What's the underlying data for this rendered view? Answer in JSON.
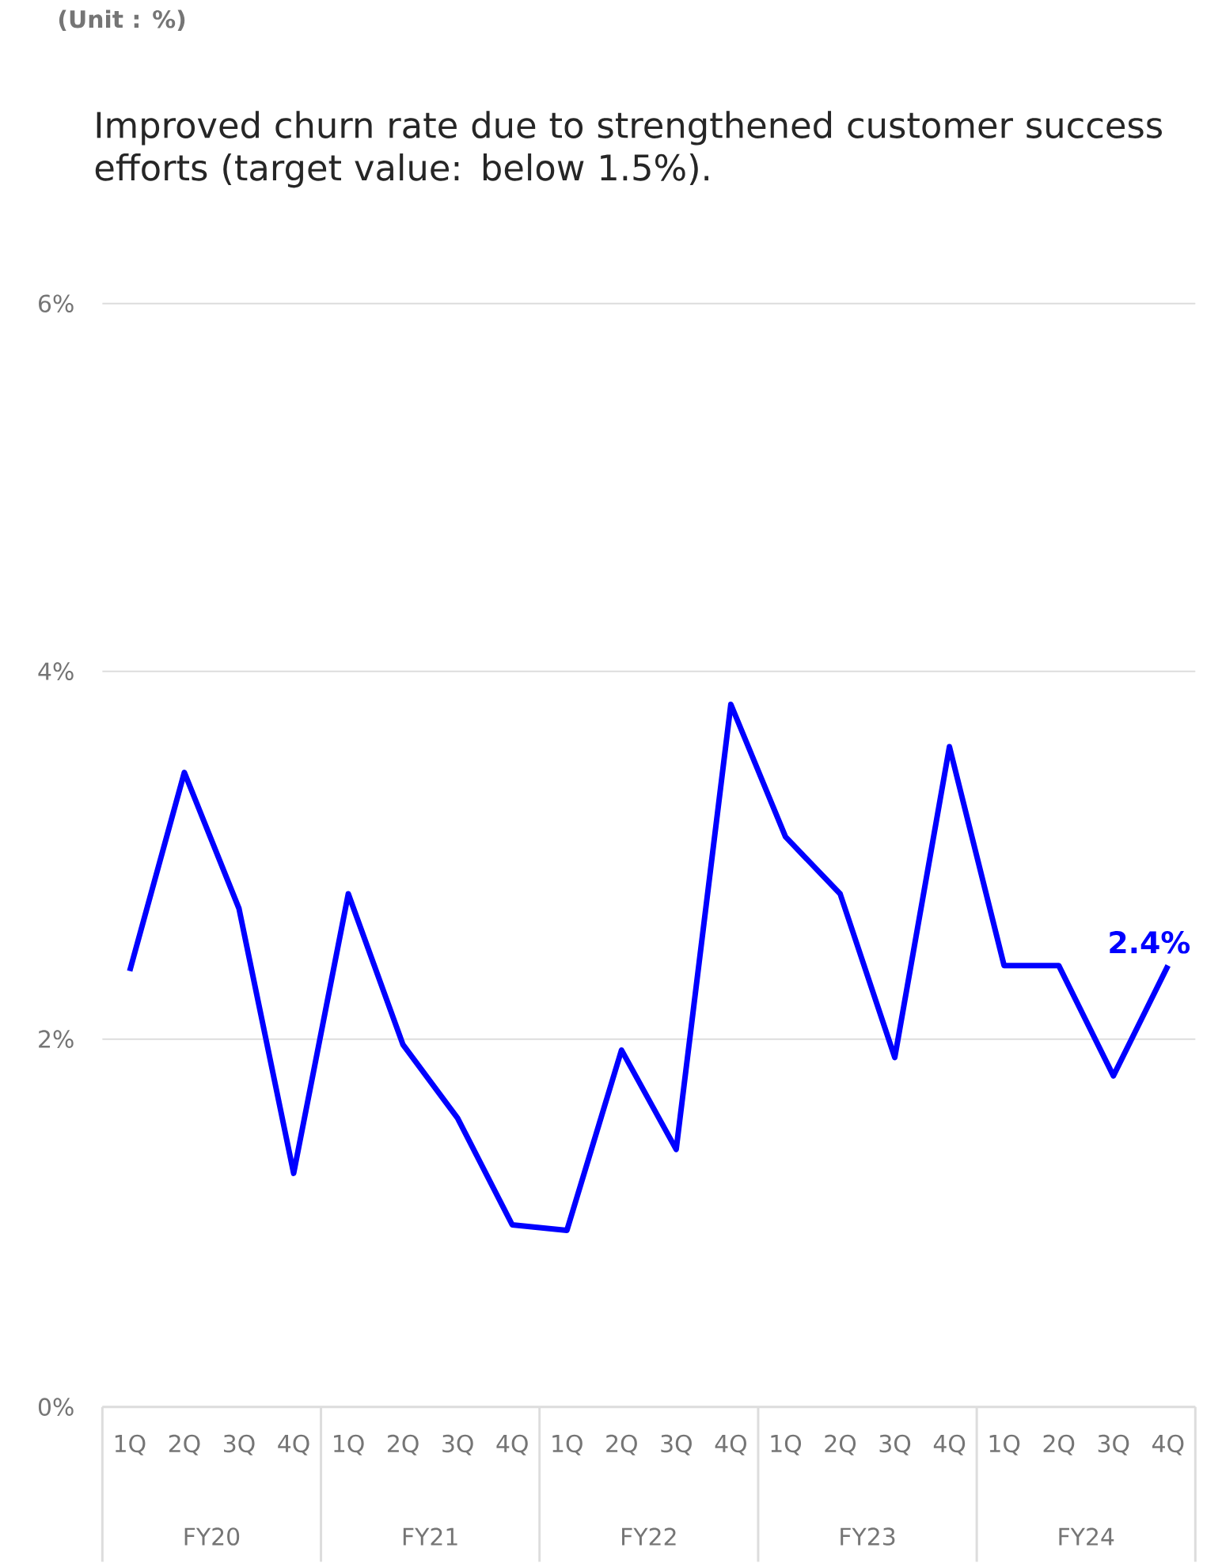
{
  "chart_data": {
    "type": "line",
    "title": "Improved churn rate due to strengthened customer success efforts (target value: below 1.5%).",
    "annotations": [
      "(Unit : %)",
      "FY20",
      "FY21",
      "FY22",
      "FY23",
      "FY24"
    ],
    "categories": [
      "1Q",
      "2Q",
      "3Q",
      "4Q",
      "1Q",
      "2Q",
      "3Q",
      "4Q",
      "1Q",
      "2Q",
      "3Q",
      "4Q",
      "1Q",
      "2Q",
      "3Q",
      "4Q",
      "1Q",
      "2Q",
      "3Q",
      "4Q"
    ],
    "series": [
      {
        "color": "#0000ff",
        "values": [
          2.37,
          3.45,
          2.71,
          1.27,
          2.79,
          1.97,
          1.57,
          0.99,
          0.96,
          1.94,
          1.4,
          3.82,
          3.1,
          2.79,
          1.9,
          3.59,
          2.4,
          2.4,
          1.8,
          2.4
        ],
        "value_labels": [
          null,
          null,
          null,
          null,
          null,
          null,
          null,
          null,
          null,
          null,
          null,
          null,
          null,
          null,
          null,
          null,
          null,
          null,
          null,
          "2.4%"
        ]
      }
    ],
    "ylim": [
      0,
      6
    ],
    "yticks": [
      {
        "value": 0,
        "label": "0%"
      },
      {
        "value": 2,
        "label": "2%"
      },
      {
        "value": 4,
        "label": "4%"
      },
      {
        "value": 6,
        "label": "6%"
      }
    ],
    "grid": "y",
    "marker": "none",
    "line_style": "solid"
  }
}
